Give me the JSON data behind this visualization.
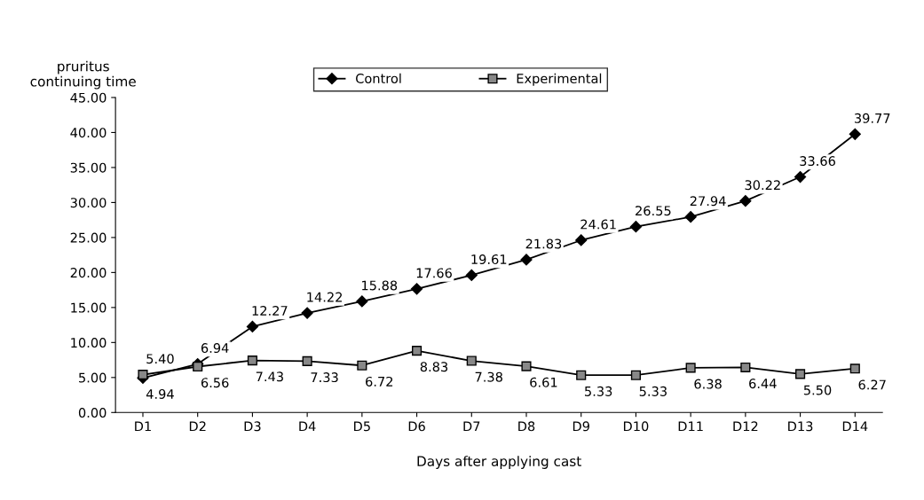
{
  "chart_data": {
    "type": "line",
    "xlabel": "Days after applying cast",
    "ylabel": "pruritus\ncontinuing time",
    "categories": [
      "D1",
      "D2",
      "D3",
      "D4",
      "D5",
      "D6",
      "D7",
      "D8",
      "D9",
      "D10",
      "D11",
      "D12",
      "D13",
      "D14"
    ],
    "series": [
      {
        "name": "Control",
        "color": "#000000",
        "marker": "diamond",
        "values": [
          4.94,
          6.94,
          12.27,
          14.22,
          15.88,
          17.66,
          19.61,
          21.83,
          24.61,
          26.55,
          27.94,
          30.22,
          33.66,
          39.77
        ],
        "value_labels": [
          "4.94",
          "6.94",
          "12.27",
          "14.22",
          "15.88",
          "17.66",
          "19.61",
          "21.83",
          "24.61",
          "26.55",
          "27.94",
          "30.22",
          "33.66",
          "39.77"
        ]
      },
      {
        "name": "Experimental",
        "color": "#000000",
        "marker": "square",
        "values": [
          5.4,
          6.56,
          7.43,
          7.33,
          6.72,
          8.83,
          7.38,
          6.61,
          5.33,
          5.33,
          6.38,
          6.44,
          5.5,
          6.27
        ],
        "value_labels": [
          "5.40",
          "6.56",
          "7.43",
          "7.33",
          "6.72",
          "8.83",
          "7.38",
          "6.61",
          "5.33",
          "5.33",
          "6.38",
          "6.44",
          "5.50",
          "6.27"
        ]
      }
    ],
    "ylim": [
      0,
      45
    ],
    "yticks": [
      {
        "value": 0,
        "label": "0.00"
      },
      {
        "value": 5,
        "label": "5.00"
      },
      {
        "value": 10,
        "label": "10.00"
      },
      {
        "value": 15,
        "label": "15.00"
      },
      {
        "value": 20,
        "label": "20.00"
      },
      {
        "value": 25,
        "label": "25.00"
      },
      {
        "value": 30,
        "label": "30.00"
      },
      {
        "value": 35,
        "label": "35.00"
      },
      {
        "value": 40,
        "label": "40.00"
      },
      {
        "value": 45,
        "label": "45.00"
      }
    ],
    "grid": false,
    "legend": "top",
    "line_style": "solid"
  }
}
